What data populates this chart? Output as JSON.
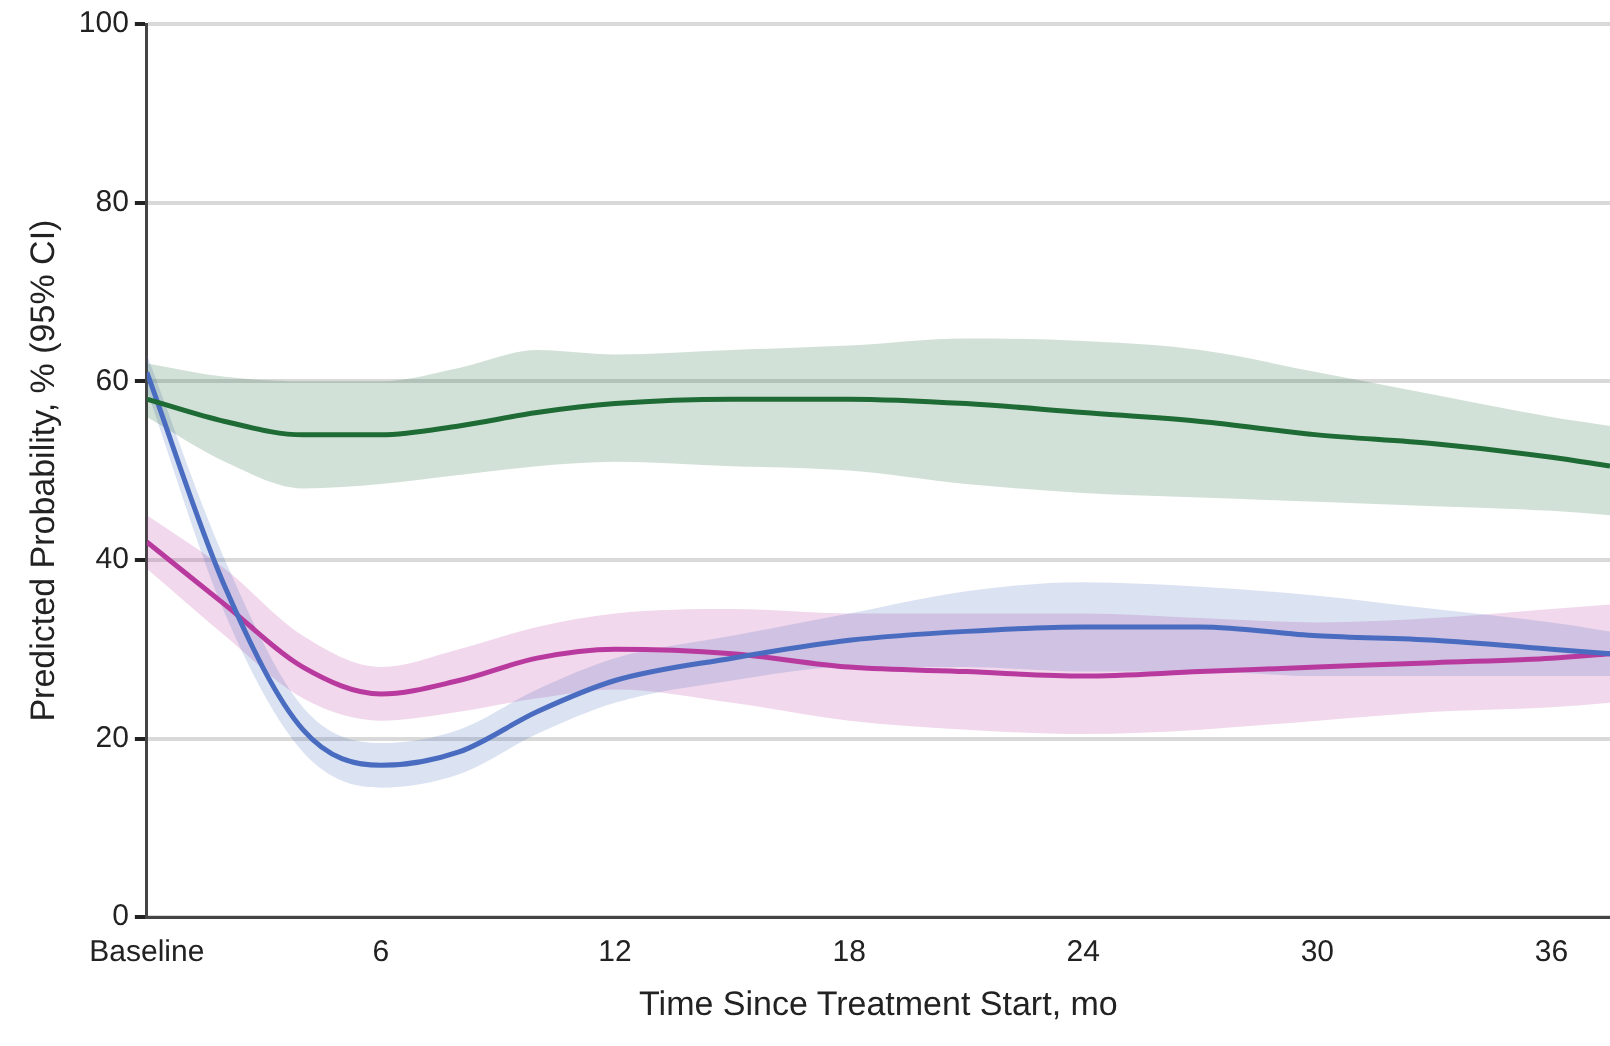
{
  "chart_data": {
    "type": "line",
    "xlabel": "Time Since Treatment Start, mo",
    "ylabel": "Predicted Probability, % (95% CI)",
    "x": [
      0,
      2,
      4,
      6,
      8,
      10,
      12,
      15,
      18,
      21,
      24,
      27,
      30,
      33,
      36,
      37.5
    ],
    "xlim": [
      0,
      37.5
    ],
    "xticks": [
      {
        "value": 0,
        "label": "Baseline"
      },
      6,
      12,
      18,
      24,
      30,
      36
    ],
    "ylim": [
      0,
      100
    ],
    "yticks": [
      0,
      20,
      40,
      60,
      80,
      100
    ],
    "grid": "y",
    "marker": "none",
    "line_style": "solid",
    "series": [
      {
        "color": "#1e6b35",
        "values": [
          58,
          55.5,
          54,
          54,
          55,
          56.5,
          57.5,
          58,
          58,
          57.5,
          56.5,
          55.5,
          54,
          53,
          51.5,
          50.5
        ],
        "lower": [
          56,
          51,
          48,
          48.5,
          49.5,
          50.5,
          51,
          50.5,
          50,
          48.5,
          47.5,
          47,
          46.5,
          46,
          45.5,
          45
        ],
        "upper": [
          62,
          60.5,
          60,
          60,
          61.5,
          63.5,
          63,
          63.5,
          64,
          64.8,
          64.5,
          63.5,
          61,
          58.5,
          56,
          55
        ]
      },
      {
        "color": "#4a6cc0",
        "values": [
          61,
          37,
          21,
          17,
          18.5,
          23,
          26.5,
          29,
          31,
          32,
          32.5,
          32.5,
          31.5,
          31,
          30,
          29.5
        ],
        "lower": [
          59,
          34,
          18.5,
          14.5,
          16,
          20.5,
          24,
          26.5,
          28,
          28,
          27.5,
          27.5,
          27,
          27,
          27,
          27
        ],
        "upper": [
          63,
          40,
          23.5,
          19.5,
          21,
          25.5,
          29,
          31.5,
          34,
          36.5,
          37.5,
          37,
          36,
          34.5,
          33,
          32
        ]
      },
      {
        "color": "#b93a9e",
        "values": [
          42,
          35,
          28,
          25,
          26.5,
          29,
          30,
          29.5,
          28,
          27.5,
          27,
          27.5,
          28,
          28.5,
          29,
          29.5
        ],
        "lower": [
          39,
          31.5,
          24.5,
          22,
          23,
          24.5,
          25.5,
          24,
          22,
          21,
          20.5,
          21,
          22,
          23,
          23.5,
          24
        ],
        "upper": [
          45,
          39,
          31.5,
          28,
          30,
          32.5,
          34,
          34.5,
          34,
          34,
          34,
          33.5,
          33,
          33.5,
          34.5,
          35
        ]
      }
    ]
  }
}
